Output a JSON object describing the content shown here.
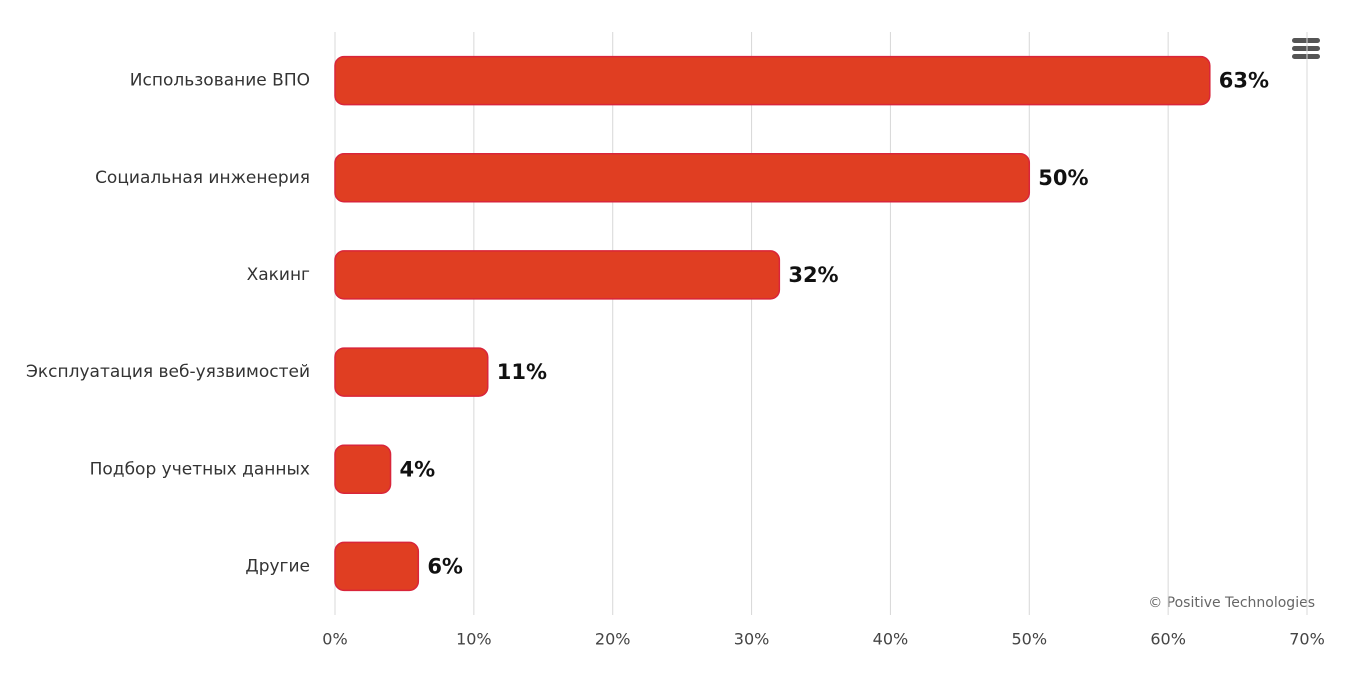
{
  "chart_data": {
    "type": "bar",
    "orientation": "horizontal",
    "categories": [
      "Использование ВПО",
      "Социальная инженерия",
      "Хакинг",
      "Эксплуатация веб-уязвимостей",
      "Подбор учетных данных",
      "Другие"
    ],
    "values": [
      63,
      50,
      32,
      11,
      4,
      6
    ],
    "value_labels": [
      "63%",
      "50%",
      "32%",
      "11%",
      "4%",
      "6%"
    ],
    "color": "#e03e22",
    "xlim": [
      0,
      70
    ],
    "xticks": [
      {
        "value": 0,
        "label": "0%"
      },
      {
        "value": 10,
        "label": "10%"
      },
      {
        "value": 20,
        "label": "20%"
      },
      {
        "value": 30,
        "label": "30%"
      },
      {
        "value": 40,
        "label": "40%"
      },
      {
        "value": 50,
        "label": "50%"
      },
      {
        "value": 60,
        "label": "60%"
      },
      {
        "value": 70,
        "label": "70%"
      }
    ],
    "grid": true,
    "credits": "© Positive Technologies"
  }
}
